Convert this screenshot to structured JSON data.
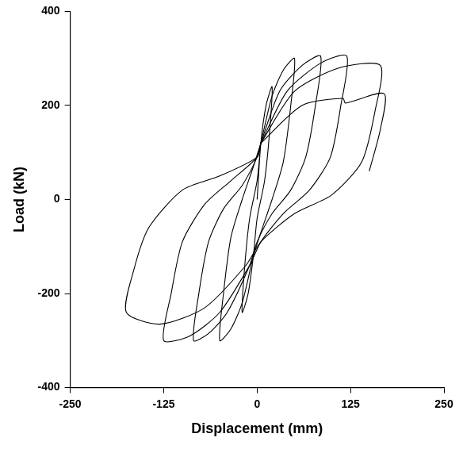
{
  "chart_data": {
    "type": "line",
    "x_label": "Displacement (mm)",
    "y_label": "Load (kN)",
    "xlim": [
      -250,
      250
    ],
    "xticks": [
      -250,
      -125,
      0,
      125,
      250
    ],
    "ylim": [
      -400,
      400
    ],
    "yticks": [
      -400,
      -200,
      0,
      200,
      400
    ],
    "grid": false,
    "series": [
      {
        "color": "#000000",
        "x": [
          0,
          5,
          12,
          20,
          17,
          10,
          0,
          -5,
          -12,
          -20,
          -17,
          -10,
          0,
          5
        ],
        "values": [
          0,
          120,
          200,
          240,
          150,
          40,
          -40,
          -120,
          -200,
          -240,
          -150,
          -40,
          40,
          120
        ]
      },
      {
        "color": "#000000",
        "x": [
          5,
          20,
          35,
          50,
          45,
          35,
          20,
          5,
          -5,
          -20,
          -35,
          -50,
          -45,
          -35,
          -20,
          -5,
          5
        ],
        "values": [
          120,
          220,
          275,
          300,
          200,
          80,
          0,
          -70,
          -120,
          -220,
          -275,
          -300,
          -200,
          -80,
          0,
          70,
          120
        ]
      },
      {
        "color": "#000000",
        "x": [
          5,
          30,
          60,
          85,
          78,
          65,
          45,
          20,
          0,
          -10,
          -40,
          -65,
          -85,
          -78,
          -65,
          -45,
          -20,
          0,
          5
        ],
        "values": [
          120,
          230,
          285,
          305,
          200,
          90,
          20,
          -30,
          -90,
          -140,
          -240,
          -285,
          -300,
          -200,
          -90,
          -20,
          30,
          90,
          120
        ]
      },
      {
        "color": "#000000",
        "x": [
          5,
          40,
          85,
          120,
          112,
          98,
          70,
          35,
          5,
          -10,
          -50,
          -90,
          -125,
          -115,
          -100,
          -70,
          -35,
          0,
          5
        ],
        "values": [
          120,
          230,
          290,
          305,
          200,
          90,
          20,
          -30,
          -90,
          -140,
          -240,
          -290,
          -300,
          -200,
          -90,
          -10,
          40,
          90,
          120
        ]
      },
      {
        "color": "#000000",
        "x": [
          5,
          50,
          110,
          165,
          158,
          140,
          100,
          50,
          5,
          -15,
          -70,
          -130,
          -175,
          -165,
          -145,
          -100,
          -50,
          0,
          5
        ],
        "values": [
          120,
          230,
          280,
          285,
          190,
          80,
          10,
          -30,
          -90,
          -140,
          -230,
          -265,
          -240,
          -150,
          -60,
          20,
          50,
          90,
          120
        ]
      },
      {
        "color": "#000000",
        "x": [
          5,
          60,
          115,
          118,
          170,
          165,
          150
        ],
        "values": [
          120,
          200,
          215,
          205,
          225,
          150,
          60
        ]
      }
    ]
  }
}
